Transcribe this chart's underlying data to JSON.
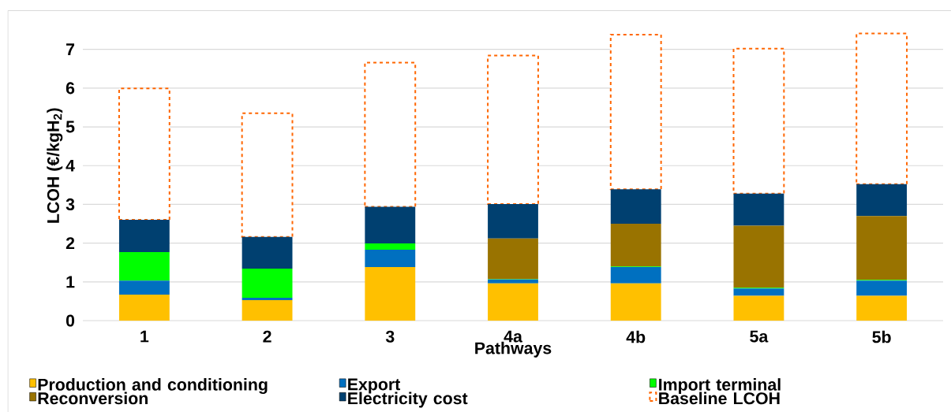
{
  "chart_data": {
    "type": "bar",
    "stacked": true,
    "xlabel": "Pathways",
    "ylabel": "LCOH (€/kgH$_{2}$)",
    "categories": [
      "1",
      "2",
      "3",
      "4a",
      "4b",
      "5a",
      "5b"
    ],
    "series": [
      {
        "name": "Production and conditioning",
        "color": "#ffc000",
        "values": [
          0.67,
          0.53,
          1.38,
          0.96,
          0.96,
          0.64,
          0.64
        ]
      },
      {
        "name": "Export",
        "color": "#0070c0",
        "values": [
          0.36,
          0.06,
          0.45,
          0.1,
          0.42,
          0.19,
          0.39
        ]
      },
      {
        "name": "Import terminal",
        "color": "#00ff00",
        "values": [
          0.74,
          0.75,
          0.16,
          0.01,
          0.02,
          0.02,
          0.02
        ]
      },
      {
        "name": "Reconversion",
        "color": "#997300",
        "values": [
          0,
          0,
          0,
          1.05,
          1.1,
          1.6,
          1.65
        ]
      },
      {
        "name": "Electricity cost",
        "color": "#004070",
        "values": [
          0.83,
          0.82,
          0.95,
          0.89,
          0.89,
          0.83,
          0.82
        ]
      },
      {
        "name": "Baseline LCOH",
        "color": "#ff6600",
        "line_style": "dashed",
        "values": [
          3.39,
          3.19,
          3.72,
          3.83,
          3.99,
          3.74,
          3.89
        ]
      }
    ],
    "ylim": [
      0,
      8
    ],
    "yticks": [
      0,
      1,
      2,
      3,
      4,
      5,
      6,
      7
    ],
    "grid": "y",
    "legend": "bottom"
  }
}
